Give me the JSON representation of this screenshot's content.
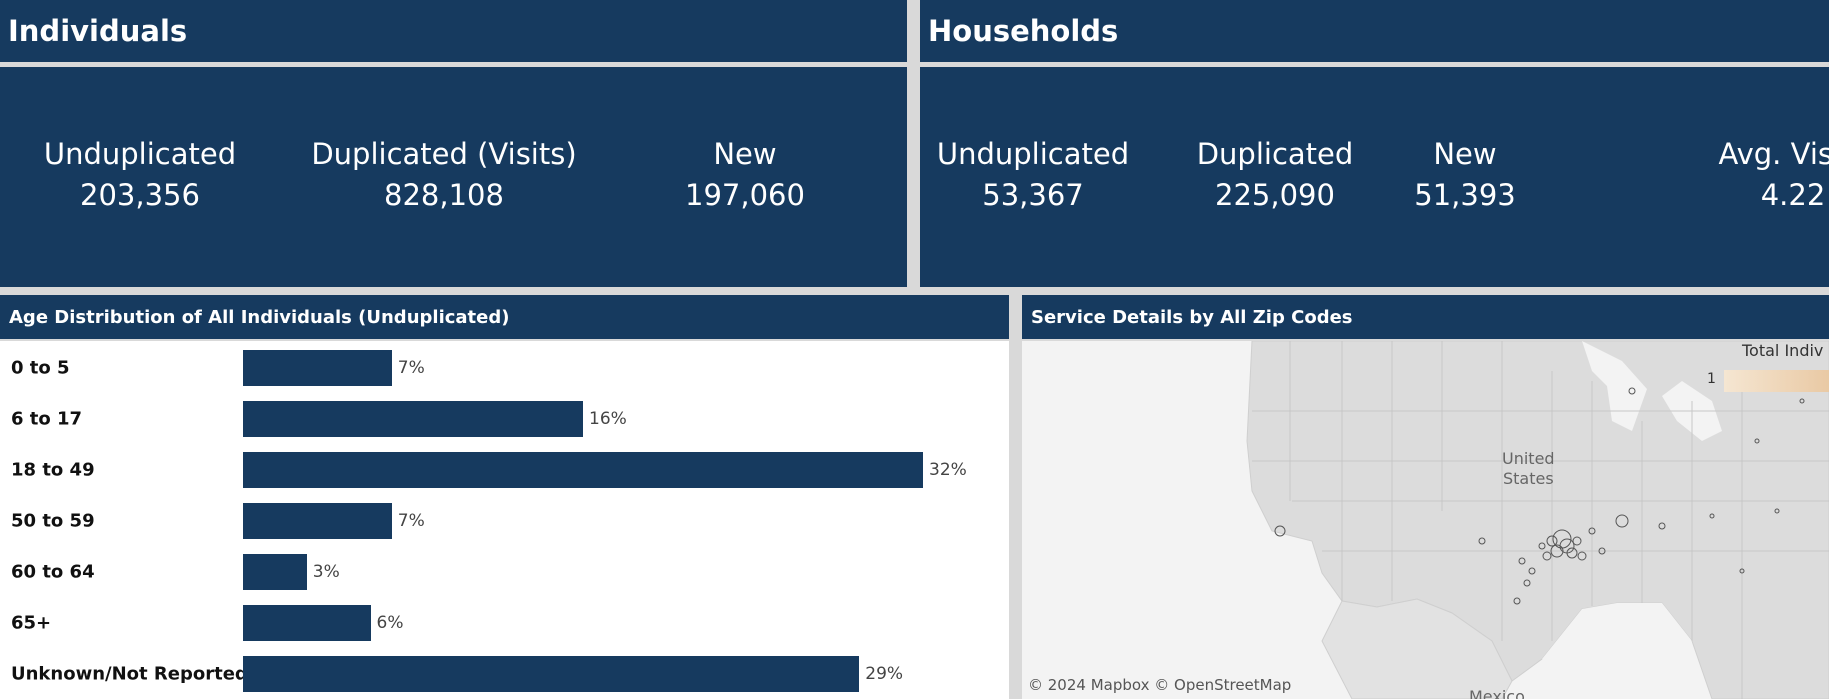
{
  "individuals": {
    "title": "Individuals",
    "metrics": [
      {
        "label": "Unduplicated",
        "value": "203,356"
      },
      {
        "label": "Duplicated (Visits)",
        "value": "828,108"
      },
      {
        "label": "New",
        "value": "197,060"
      }
    ]
  },
  "households": {
    "title": "Households",
    "metrics": [
      {
        "label": "Unduplicated",
        "value": "53,367"
      },
      {
        "label": "Duplicated",
        "value": "225,090"
      },
      {
        "label": "New",
        "value": "51,393"
      },
      {
        "label": "Avg. Visits",
        "value": "4.22"
      }
    ]
  },
  "age_panel": {
    "title": "Age Distribution of All Individuals (Unduplicated)"
  },
  "map_panel": {
    "title": "Service Details by All Zip Codes",
    "legend_title": "Total Indiv",
    "legend_min": "1",
    "country_label_1": "United",
    "country_label_2": "States",
    "mexico_label": "Mexico",
    "attribution": "© 2024 Mapbox  © OpenStreetMap"
  },
  "colors": {
    "navy": "#163a5f",
    "bar": "#163a5f",
    "background": "#d9d9d9"
  },
  "chart_data": {
    "type": "bar",
    "orientation": "horizontal",
    "categories": [
      "0 to 5",
      "6 to 17",
      "18 to 49",
      "50 to 59",
      "60 to 64",
      "65+",
      "Unknown/Not Reported"
    ],
    "values": [
      7,
      16,
      32,
      7,
      3,
      6,
      29
    ],
    "value_labels": [
      "7%",
      "16%",
      "32%",
      "7%",
      "3%",
      "6%",
      "29%"
    ],
    "title": "Age Distribution of All Individuals (Unduplicated)",
    "xlabel": "",
    "ylabel": ""
  }
}
